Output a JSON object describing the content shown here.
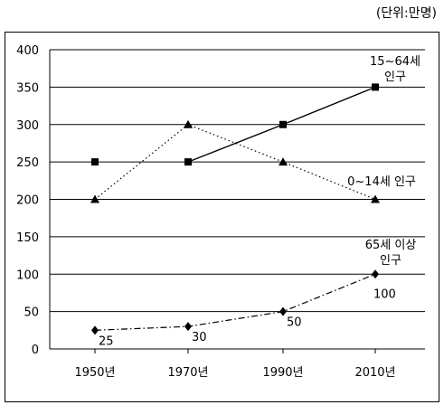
{
  "unit_label": "(단위:만명)",
  "chart_data": {
    "type": "line",
    "categories": [
      "1950년",
      "1970년",
      "1990년",
      "2010년"
    ],
    "ylim": [
      0,
      400
    ],
    "yticks": [
      0,
      50,
      100,
      150,
      200,
      250,
      300,
      350,
      400
    ],
    "grid": true,
    "series": [
      {
        "name": "15~64세 인구",
        "label_lines": [
          "15~64세",
          "인구"
        ],
        "marker": "square",
        "values": [
          250,
          250,
          300,
          350
        ],
        "line_style": "solid",
        "line_from_index": 1
      },
      {
        "name": "0~14세 인구",
        "label_lines": [
          "0~14세 인구"
        ],
        "marker": "triangle",
        "values": [
          200,
          300,
          250,
          200
        ],
        "line_style": "dotted",
        "line_from_index": 0
      },
      {
        "name": "65세 이상 인구",
        "label_lines": [
          "65세 이상",
          "인구"
        ],
        "marker": "diamond",
        "values": [
          25,
          30,
          50,
          100
        ],
        "value_labels": [
          "25",
          "30",
          "50",
          "100"
        ],
        "line_style": "dashdot",
        "line_from_index": 0
      }
    ]
  }
}
